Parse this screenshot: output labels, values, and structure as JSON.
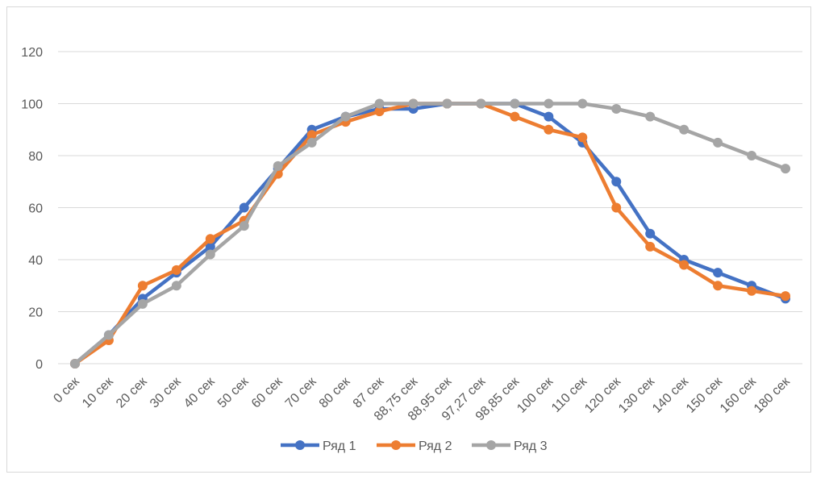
{
  "chart_data": {
    "type": "line",
    "title": "",
    "xlabel": "",
    "ylabel": "",
    "categories": [
      "0 сек",
      "10 сек",
      "20 сек",
      "30 сек",
      "40 сек",
      "50 сек",
      "60 сек",
      "70 сек",
      "80 сек",
      "87 сек",
      "88,75 сек",
      "88,95 сек",
      "97,27 сек",
      "98,85 сек",
      "100 сек",
      "110 сек",
      "120 сек",
      "130 сек",
      "140 сек",
      "150 сек",
      "160 сек",
      "180 сек"
    ],
    "ylim": [
      0,
      120
    ],
    "yticks": [
      0,
      20,
      40,
      60,
      80,
      100,
      120
    ],
    "grid": true,
    "legend_position": "bottom",
    "series": [
      {
        "name": "Ряд 1",
        "color": "#4472c4",
        "values": [
          0,
          11,
          25,
          35,
          45,
          60,
          75,
          90,
          95,
          98,
          98,
          100,
          100,
          100,
          95,
          85,
          70,
          50,
          40,
          35,
          30,
          25
        ]
      },
      {
        "name": "Ряд 2",
        "color": "#ed7d31",
        "values": [
          0,
          9,
          30,
          36,
          48,
          55,
          73,
          88,
          93,
          97,
          100,
          100,
          100,
          95,
          90,
          87,
          60,
          45,
          38,
          30,
          28,
          26
        ]
      },
      {
        "name": "Ряд 3",
        "color": "#a5a5a5",
        "values": [
          0,
          11,
          23,
          30,
          42,
          53,
          76,
          85,
          95,
          100,
          100,
          100,
          100,
          100,
          100,
          100,
          98,
          95,
          90,
          85,
          80,
          75
        ]
      }
    ]
  }
}
